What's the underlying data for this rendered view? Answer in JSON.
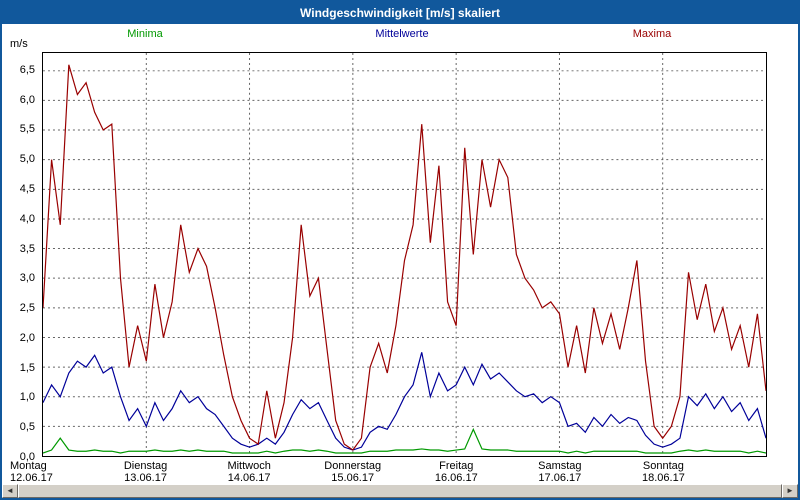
{
  "window": {
    "title": "Windgeschwindigkeit [m/s] skaliert"
  },
  "colors": {
    "title_bar_bg": "#11589c",
    "window_border": "#11589c",
    "minima": "#009900",
    "mittelwerte": "#000099",
    "maxima": "#990000",
    "grid": "#666666"
  },
  "axis": {
    "unit_label": "m/s",
    "y_ticks": [
      "6,5",
      "6,0",
      "5,5",
      "5,0",
      "4,5",
      "4,0",
      "3,5",
      "3,0",
      "2,5",
      "2,0",
      "1,5",
      "1,0",
      "0,5",
      "0,0"
    ]
  },
  "legend": [
    {
      "label": "Minima",
      "color": "#009900"
    },
    {
      "label": "Mittelwerte",
      "color": "#000099"
    },
    {
      "label": "Maxima",
      "color": "#990000"
    }
  ],
  "scrollbar": {
    "left_arrow": "◄",
    "right_arrow": "►"
  },
  "chart_data": {
    "type": "line",
    "title": "Windgeschwindigkeit [m/s] skaliert",
    "ylabel": "m/s",
    "ylim": [
      0,
      6.8
    ],
    "grid": true,
    "legend_position": "top",
    "x_step_hours": 2,
    "days": [
      {
        "day": "Montag",
        "date": "12.06.17"
      },
      {
        "day": "Dienstag",
        "date": "13.06.17"
      },
      {
        "day": "Mittwoch",
        "date": "14.06.17"
      },
      {
        "day": "Donnerstag",
        "date": "15.06.17"
      },
      {
        "day": "Freitag",
        "date": "16.06.17"
      },
      {
        "day": "Samstag",
        "date": "17.06.17"
      },
      {
        "day": "Sonntag",
        "date": "18.06.17"
      }
    ],
    "series": [
      {
        "name": "Minima",
        "color": "#009900",
        "values": [
          0.05,
          0.1,
          0.3,
          0.1,
          0.08,
          0.08,
          0.1,
          0.08,
          0.08,
          0.05,
          0.08,
          0.08,
          0.08,
          0.1,
          0.08,
          0.08,
          0.1,
          0.08,
          0.1,
          0.08,
          0.08,
          0.08,
          0.05,
          0.05,
          0.05,
          0.05,
          0.08,
          0.05,
          0.08,
          0.1,
          0.1,
          0.08,
          0.1,
          0.08,
          0.05,
          0.05,
          0.05,
          0.05,
          0.08,
          0.08,
          0.08,
          0.1,
          0.1,
          0.1,
          0.12,
          0.1,
          0.1,
          0.08,
          0.1,
          0.12,
          0.45,
          0.12,
          0.1,
          0.1,
          0.1,
          0.08,
          0.08,
          0.08,
          0.08,
          0.08,
          0.08,
          0.05,
          0.08,
          0.05,
          0.08,
          0.08,
          0.08,
          0.08,
          0.08,
          0.08,
          0.05,
          0.05,
          0.05,
          0.05,
          0.08,
          0.1,
          0.08,
          0.1,
          0.08,
          0.08,
          0.08,
          0.08,
          0.05,
          0.08,
          0.05
        ]
      },
      {
        "name": "Mittelwerte",
        "color": "#000099",
        "values": [
          0.9,
          1.2,
          1.0,
          1.4,
          1.6,
          1.5,
          1.7,
          1.4,
          1.5,
          1.0,
          0.6,
          0.8,
          0.5,
          0.9,
          0.6,
          0.8,
          1.1,
          0.9,
          1.0,
          0.8,
          0.7,
          0.5,
          0.3,
          0.2,
          0.15,
          0.2,
          0.3,
          0.2,
          0.4,
          0.7,
          0.95,
          0.8,
          0.9,
          0.6,
          0.3,
          0.15,
          0.1,
          0.15,
          0.4,
          0.5,
          0.45,
          0.7,
          1.0,
          1.2,
          1.75,
          1.0,
          1.4,
          1.1,
          1.2,
          1.5,
          1.2,
          1.55,
          1.3,
          1.4,
          1.25,
          1.1,
          1.0,
          1.05,
          0.9,
          1.0,
          0.9,
          0.5,
          0.55,
          0.4,
          0.65,
          0.5,
          0.7,
          0.55,
          0.65,
          0.6,
          0.35,
          0.2,
          0.15,
          0.2,
          0.3,
          1.0,
          0.85,
          1.05,
          0.8,
          1.0,
          0.75,
          0.9,
          0.6,
          0.8,
          0.3
        ]
      },
      {
        "name": "Maxima",
        "color": "#990000",
        "values": [
          2.5,
          5.0,
          3.9,
          6.6,
          6.1,
          6.3,
          5.8,
          5.5,
          5.6,
          3.0,
          1.5,
          2.2,
          1.6,
          2.9,
          2.0,
          2.6,
          3.9,
          3.1,
          3.5,
          3.2,
          2.5,
          1.7,
          1.0,
          0.6,
          0.3,
          0.2,
          1.1,
          0.3,
          0.9,
          2.0,
          3.9,
          2.7,
          3.0,
          1.8,
          0.6,
          0.2,
          0.1,
          0.3,
          1.5,
          1.9,
          1.4,
          2.2,
          3.3,
          3.9,
          5.6,
          3.6,
          4.9,
          2.6,
          2.2,
          5.2,
          3.4,
          5.0,
          4.2,
          5.0,
          4.7,
          3.4,
          3.0,
          2.8,
          2.5,
          2.6,
          2.4,
          1.5,
          2.2,
          1.4,
          2.5,
          1.9,
          2.4,
          1.8,
          2.5,
          3.3,
          1.6,
          0.5,
          0.3,
          0.5,
          1.0,
          3.1,
          2.3,
          2.9,
          2.1,
          2.5,
          1.8,
          2.2,
          1.5,
          2.4,
          1.1
        ]
      }
    ]
  }
}
